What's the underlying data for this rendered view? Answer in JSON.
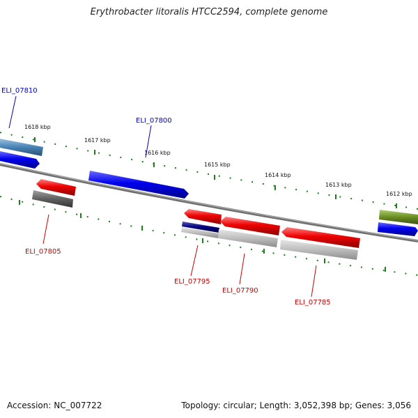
{
  "title": "Erythrobacter litoralis HTCC2594, complete genome",
  "footer": {
    "accession": "Accession: NC_007722",
    "summary": "Topology: circular; Length: 3,052,398 bp; Genes: 3,056"
  },
  "ticks": [
    "1618 kbp",
    "1617 kbp",
    "1616 kbp",
    "1615 kbp",
    "1614 kbp",
    "1613 kbp",
    "1612 kbp"
  ],
  "genes_forward": [
    {
      "label": "ELI_07810",
      "color": "#0000cc"
    },
    {
      "label": "ELI_07800",
      "color": "#0000cc"
    }
  ],
  "genes_reverse": [
    {
      "label": "ELI_07805",
      "color": "#cc0000"
    },
    {
      "label": "ELI_07795",
      "color": "#cc0000"
    },
    {
      "label": "ELI_07790",
      "color": "#cc0000"
    },
    {
      "label": "ELI_07785",
      "color": "#cc0000"
    }
  ],
  "colors": {
    "forward": "#0000ee",
    "reverse": "#ee0000",
    "backbone": "#808080",
    "tick": "#1a7f1a",
    "steelblue": "#4682b4",
    "olive": "#6b8e23",
    "navy": "#000080",
    "gray_dark": "#555555",
    "gray_light": "#bbbbbb"
  }
}
